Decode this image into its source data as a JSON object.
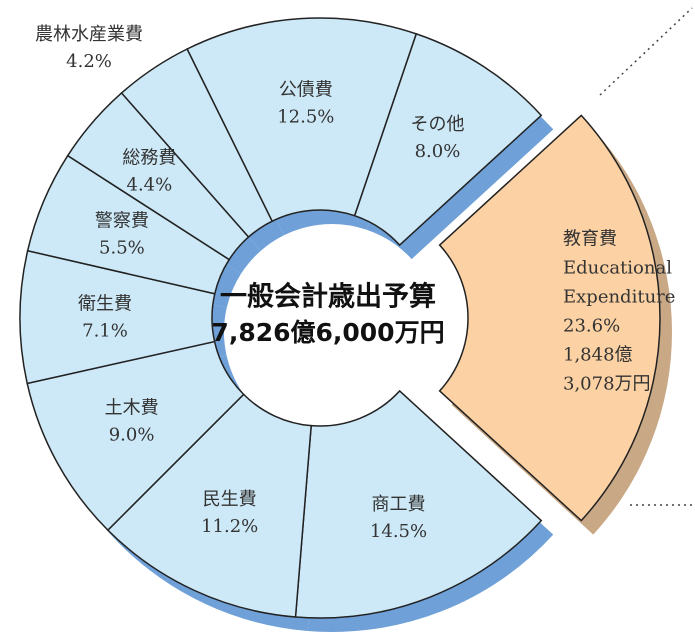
{
  "chart_data": {
    "type": "donut",
    "center_title": "一般会計歳出予算",
    "center_value": "7,826億6,000万円",
    "categories": [
      "教育費",
      "商工費",
      "民生費",
      "土木費",
      "衛生費",
      "警察費",
      "総務費",
      "農林水産業費",
      "公債費",
      "その他"
    ],
    "values": [
      23.6,
      14.5,
      11.2,
      9.0,
      7.1,
      5.5,
      4.4,
      4.2,
      12.5,
      8.0
    ],
    "value_labels": [
      "23.6%",
      "14.5%",
      "11.2%",
      "9.0%",
      "7.1%",
      "5.5%",
      "4.4%",
      "4.2%",
      "12.5%",
      "8.0%"
    ],
    "colors": [
      "#fcd2a4",
      "#cde9f7",
      "#cde9f7",
      "#cde9f7",
      "#cde9f7",
      "#cde9f7",
      "#cde9f7",
      "#cde9f7",
      "#cde9f7",
      "#cde9f7"
    ],
    "shadow_colors": [
      "#c9a886",
      "#6fa0d8",
      "#6fa0d8",
      "#6fa0d8",
      "#6fa0d8",
      "#6fa0d8",
      "#6fa0d8",
      "#6fa0d8",
      "#6fa0d8",
      "#6fa0d8"
    ],
    "explode": 0,
    "explode_name_en": [
      "Educational",
      "Expenditure"
    ],
    "explode_amount": [
      "1,848億",
      "3,078万円"
    ]
  }
}
